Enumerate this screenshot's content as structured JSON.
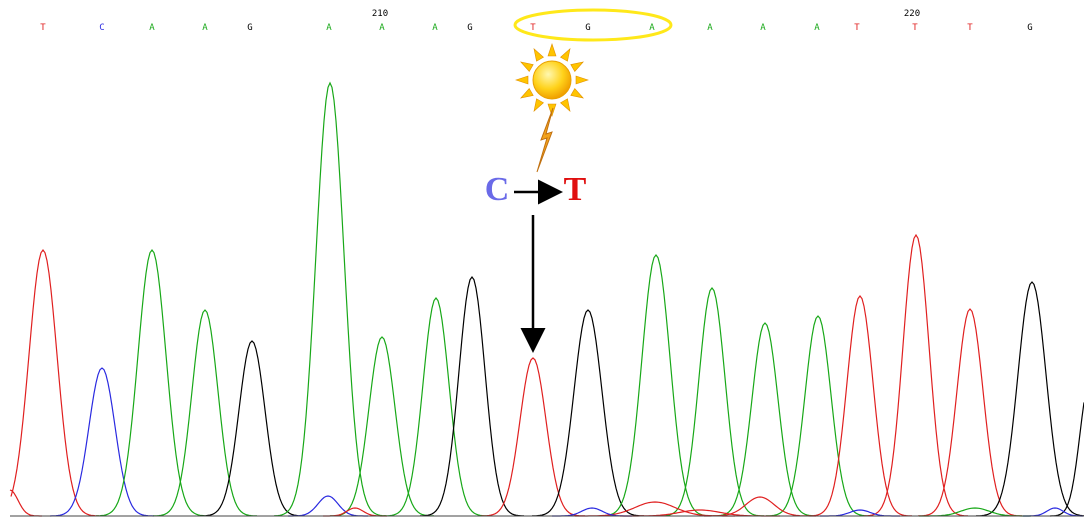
{
  "positions": [
    "210",
    "220"
  ],
  "bases": [
    "T",
    "C",
    "A",
    "A",
    "G",
    "A",
    "A",
    "A",
    "G",
    "T",
    "G",
    "A",
    "A",
    "A",
    "A",
    "T",
    "T",
    "T",
    "G"
  ],
  "mutation": {
    "from": "C",
    "to": "T"
  }
}
